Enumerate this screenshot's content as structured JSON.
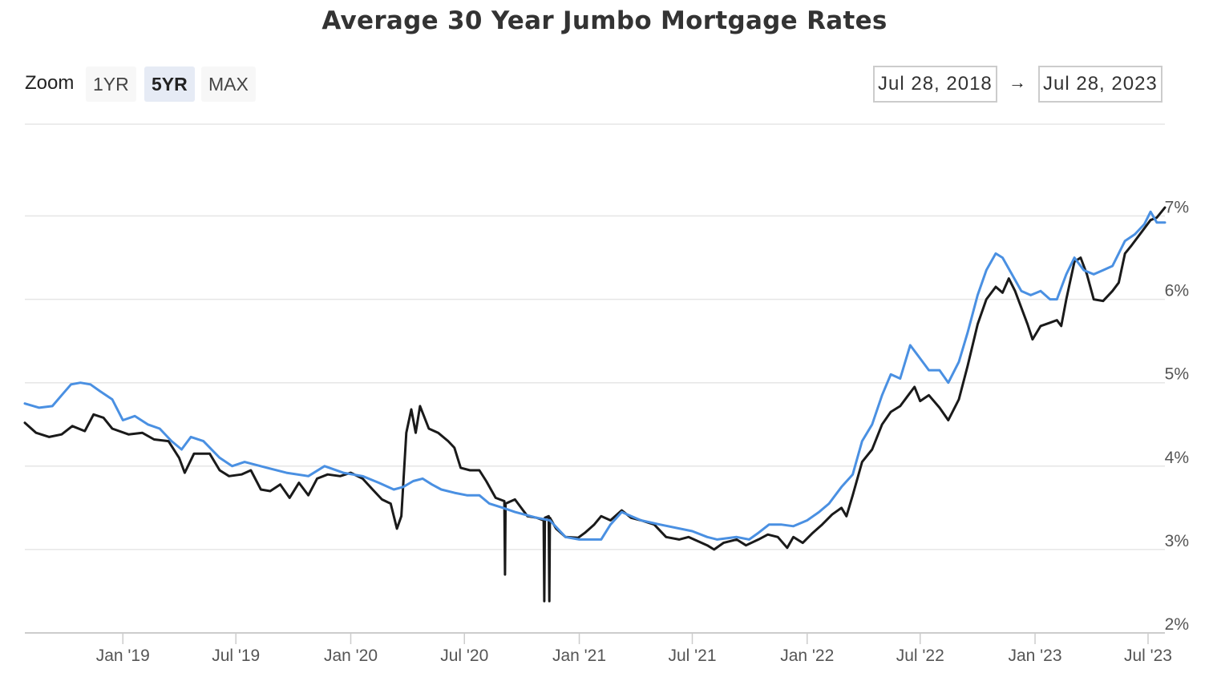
{
  "chart_data": {
    "type": "line",
    "title": "Average 30 Year Jumbo Mortgage Rates",
    "xlabel": "",
    "ylabel": "",
    "x_tick_labels": [
      "Jan '19",
      "Jul '19",
      "Jan '20",
      "Jul '20",
      "Jan '21",
      "Jul '21",
      "Jan '22",
      "Jul '22",
      "Jan '23",
      "Jul '23"
    ],
    "y_tick_labels": [
      "2%",
      "3%",
      "4%",
      "5%",
      "6%",
      "7%"
    ],
    "ylim": [
      2,
      8.1
    ],
    "xlim": [
      "2018-07-28",
      "2023-07-28"
    ],
    "grid": true,
    "legend": "none",
    "series": [
      {
        "color": "#1a1a1a",
        "points": [
          [
            "2018-07-28",
            4.52
          ],
          [
            "2018-08-15",
            4.4
          ],
          [
            "2018-09-05",
            4.35
          ],
          [
            "2018-09-25",
            4.38
          ],
          [
            "2018-10-12",
            4.48
          ],
          [
            "2018-11-01",
            4.42
          ],
          [
            "2018-11-15",
            4.62
          ],
          [
            "2018-12-01",
            4.58
          ],
          [
            "2018-12-15",
            4.45
          ],
          [
            "2019-01-10",
            4.38
          ],
          [
            "2019-02-01",
            4.4
          ],
          [
            "2019-02-20",
            4.32
          ],
          [
            "2019-03-15",
            4.3
          ],
          [
            "2019-04-01",
            4.1
          ],
          [
            "2019-04-10",
            3.92
          ],
          [
            "2019-04-25",
            4.15
          ],
          [
            "2019-05-20",
            4.15
          ],
          [
            "2019-06-05",
            3.95
          ],
          [
            "2019-06-20",
            3.88
          ],
          [
            "2019-07-10",
            3.9
          ],
          [
            "2019-07-25",
            3.95
          ],
          [
            "2019-08-10",
            3.72
          ],
          [
            "2019-08-25",
            3.7
          ],
          [
            "2019-09-10",
            3.78
          ],
          [
            "2019-09-25",
            3.62
          ],
          [
            "2019-10-10",
            3.8
          ],
          [
            "2019-10-25",
            3.65
          ],
          [
            "2019-11-08",
            3.85
          ],
          [
            "2019-11-25",
            3.9
          ],
          [
            "2019-12-15",
            3.88
          ],
          [
            "2020-01-01",
            3.92
          ],
          [
            "2020-01-20",
            3.85
          ],
          [
            "2020-02-05",
            3.72
          ],
          [
            "2020-02-20",
            3.6
          ],
          [
            "2020-03-05",
            3.55
          ],
          [
            "2020-03-15",
            3.25
          ],
          [
            "2020-03-22",
            3.4
          ],
          [
            "2020-03-30",
            4.4
          ],
          [
            "2020-04-07",
            4.68
          ],
          [
            "2020-04-14",
            4.4
          ],
          [
            "2020-04-21",
            4.72
          ],
          [
            "2020-05-05",
            4.45
          ],
          [
            "2020-05-20",
            4.4
          ],
          [
            "2020-06-05",
            4.3
          ],
          [
            "2020-06-15",
            4.22
          ],
          [
            "2020-06-25",
            3.98
          ],
          [
            "2020-07-10",
            3.95
          ],
          [
            "2020-07-25",
            3.95
          ],
          [
            "2020-08-05",
            3.82
          ],
          [
            "2020-08-20",
            3.62
          ],
          [
            "2020-09-03",
            3.58
          ],
          [
            "2020-09-04",
            2.7
          ],
          [
            "2020-09-05",
            3.55
          ],
          [
            "2020-09-20",
            3.6
          ],
          [
            "2020-10-10",
            3.4
          ],
          [
            "2020-10-25",
            3.38
          ],
          [
            "2020-11-05",
            3.35
          ],
          [
            "2020-11-06",
            2.38
          ],
          [
            "2020-11-07",
            3.38
          ],
          [
            "2020-11-13",
            3.4
          ],
          [
            "2020-11-14",
            2.38
          ],
          [
            "2020-11-15",
            3.38
          ],
          [
            "2020-11-25",
            3.25
          ],
          [
            "2020-12-10",
            3.15
          ],
          [
            "2020-12-30",
            3.14
          ],
          [
            "2021-01-10",
            3.2
          ],
          [
            "2021-01-25",
            3.3
          ],
          [
            "2021-02-05",
            3.4
          ],
          [
            "2021-02-20",
            3.35
          ],
          [
            "2021-03-10",
            3.47
          ],
          [
            "2021-03-25",
            3.38
          ],
          [
            "2021-04-10",
            3.35
          ],
          [
            "2021-05-01",
            3.3
          ],
          [
            "2021-05-20",
            3.15
          ],
          [
            "2021-06-10",
            3.12
          ],
          [
            "2021-06-25",
            3.15
          ],
          [
            "2021-07-10",
            3.1
          ],
          [
            "2021-07-25",
            3.05
          ],
          [
            "2021-08-05",
            3.0
          ],
          [
            "2021-08-20",
            3.08
          ],
          [
            "2021-09-10",
            3.12
          ],
          [
            "2021-09-25",
            3.05
          ],
          [
            "2021-10-15",
            3.12
          ],
          [
            "2021-10-30",
            3.18
          ],
          [
            "2021-11-15",
            3.15
          ],
          [
            "2021-11-30",
            3.02
          ],
          [
            "2021-12-10",
            3.15
          ],
          [
            "2021-12-25",
            3.08
          ],
          [
            "2022-01-10",
            3.2
          ],
          [
            "2022-01-25",
            3.3
          ],
          [
            "2022-02-10",
            3.42
          ],
          [
            "2022-02-25",
            3.5
          ],
          [
            "2022-03-05",
            3.4
          ],
          [
            "2022-03-15",
            3.65
          ],
          [
            "2022-03-30",
            4.05
          ],
          [
            "2022-04-15",
            4.2
          ],
          [
            "2022-05-01",
            4.5
          ],
          [
            "2022-05-15",
            4.65
          ],
          [
            "2022-05-30",
            4.72
          ],
          [
            "2022-06-12",
            4.85
          ],
          [
            "2022-06-22",
            4.95
          ],
          [
            "2022-07-01",
            4.78
          ],
          [
            "2022-07-15",
            4.85
          ],
          [
            "2022-08-01",
            4.7
          ],
          [
            "2022-08-15",
            4.55
          ],
          [
            "2022-09-01",
            4.8
          ],
          [
            "2022-09-15",
            5.2
          ],
          [
            "2022-10-01",
            5.7
          ],
          [
            "2022-10-15",
            6.0
          ],
          [
            "2022-10-30",
            6.15
          ],
          [
            "2022-11-10",
            6.08
          ],
          [
            "2022-11-20",
            6.25
          ],
          [
            "2022-11-30",
            6.1
          ],
          [
            "2022-12-10",
            5.9
          ],
          [
            "2022-12-20",
            5.7
          ],
          [
            "2022-12-28",
            5.52
          ],
          [
            "2023-01-10",
            5.68
          ],
          [
            "2023-01-25",
            5.72
          ],
          [
            "2023-02-05",
            5.75
          ],
          [
            "2023-02-12",
            5.68
          ],
          [
            "2023-02-20",
            6.0
          ],
          [
            "2023-03-05",
            6.45
          ],
          [
            "2023-03-15",
            6.5
          ],
          [
            "2023-03-25",
            6.3
          ],
          [
            "2023-04-05",
            6.0
          ],
          [
            "2023-04-20",
            5.98
          ],
          [
            "2023-05-05",
            6.1
          ],
          [
            "2023-05-15",
            6.2
          ],
          [
            "2023-05-25",
            6.55
          ],
          [
            "2023-06-05",
            6.65
          ],
          [
            "2023-06-20",
            6.8
          ],
          [
            "2023-07-05",
            6.95
          ],
          [
            "2023-07-15",
            6.98
          ],
          [
            "2023-07-28",
            7.1
          ]
        ]
      },
      {
        "color": "#4a90e2",
        "points": [
          [
            "2018-07-28",
            4.75
          ],
          [
            "2018-08-20",
            4.7
          ],
          [
            "2018-09-10",
            4.72
          ],
          [
            "2018-09-25",
            4.85
          ],
          [
            "2018-10-10",
            4.98
          ],
          [
            "2018-10-25",
            5.0
          ],
          [
            "2018-11-10",
            4.98
          ],
          [
            "2018-11-25",
            4.9
          ],
          [
            "2018-12-15",
            4.8
          ],
          [
            "2019-01-01",
            4.55
          ],
          [
            "2019-01-20",
            4.6
          ],
          [
            "2019-02-10",
            4.5
          ],
          [
            "2019-03-01",
            4.45
          ],
          [
            "2019-03-20",
            4.3
          ],
          [
            "2019-04-05",
            4.2
          ],
          [
            "2019-04-20",
            4.35
          ],
          [
            "2019-05-10",
            4.3
          ],
          [
            "2019-06-05",
            4.1
          ],
          [
            "2019-06-25",
            4.0
          ],
          [
            "2019-07-15",
            4.05
          ],
          [
            "2019-08-20",
            3.98
          ],
          [
            "2019-09-20",
            3.92
          ],
          [
            "2019-10-25",
            3.88
          ],
          [
            "2019-11-20",
            4.0
          ],
          [
            "2019-12-20",
            3.92
          ],
          [
            "2020-01-20",
            3.88
          ],
          [
            "2020-02-15",
            3.8
          ],
          [
            "2020-03-10",
            3.72
          ],
          [
            "2020-03-25",
            3.75
          ],
          [
            "2020-04-10",
            3.82
          ],
          [
            "2020-04-25",
            3.85
          ],
          [
            "2020-05-10",
            3.78
          ],
          [
            "2020-05-25",
            3.72
          ],
          [
            "2020-06-15",
            3.68
          ],
          [
            "2020-07-05",
            3.65
          ],
          [
            "2020-07-25",
            3.65
          ],
          [
            "2020-08-10",
            3.55
          ],
          [
            "2020-09-01",
            3.5
          ],
          [
            "2020-09-20",
            3.45
          ],
          [
            "2020-10-25",
            3.38
          ],
          [
            "2020-11-15",
            3.35
          ],
          [
            "2020-12-10",
            3.15
          ],
          [
            "2021-01-01",
            3.12
          ],
          [
            "2021-02-05",
            3.12
          ],
          [
            "2021-02-20",
            3.3
          ],
          [
            "2021-03-10",
            3.45
          ],
          [
            "2021-03-25",
            3.4
          ],
          [
            "2021-04-10",
            3.35
          ],
          [
            "2021-05-10",
            3.3
          ],
          [
            "2021-07-01",
            3.22
          ],
          [
            "2021-07-25",
            3.15
          ],
          [
            "2021-08-10",
            3.12
          ],
          [
            "2021-09-10",
            3.15
          ],
          [
            "2021-09-30",
            3.12
          ],
          [
            "2021-10-15",
            3.2
          ],
          [
            "2021-11-01",
            3.3
          ],
          [
            "2021-11-20",
            3.3
          ],
          [
            "2021-12-10",
            3.28
          ],
          [
            "2022-01-01",
            3.35
          ],
          [
            "2022-01-20",
            3.45
          ],
          [
            "2022-02-05",
            3.55
          ],
          [
            "2022-02-25",
            3.75
          ],
          [
            "2022-03-15",
            3.9
          ],
          [
            "2022-03-30",
            4.3
          ],
          [
            "2022-04-15",
            4.5
          ],
          [
            "2022-05-01",
            4.85
          ],
          [
            "2022-05-15",
            5.1
          ],
          [
            "2022-05-30",
            5.05
          ],
          [
            "2022-06-15",
            5.45
          ],
          [
            "2022-06-30",
            5.3
          ],
          [
            "2022-07-15",
            5.15
          ],
          [
            "2022-08-01",
            5.15
          ],
          [
            "2022-08-15",
            5.0
          ],
          [
            "2022-09-01",
            5.25
          ],
          [
            "2022-09-15",
            5.6
          ],
          [
            "2022-10-01",
            6.05
          ],
          [
            "2022-10-15",
            6.35
          ],
          [
            "2022-10-30",
            6.55
          ],
          [
            "2022-11-10",
            6.5
          ],
          [
            "2022-11-25",
            6.3
          ],
          [
            "2022-12-10",
            6.1
          ],
          [
            "2022-12-25",
            6.05
          ],
          [
            "2023-01-10",
            6.1
          ],
          [
            "2023-01-25",
            6.0
          ],
          [
            "2023-02-05",
            6.0
          ],
          [
            "2023-02-20",
            6.3
          ],
          [
            "2023-03-05",
            6.5
          ],
          [
            "2023-03-20",
            6.35
          ],
          [
            "2023-04-05",
            6.3
          ],
          [
            "2023-04-20",
            6.35
          ],
          [
            "2023-05-05",
            6.4
          ],
          [
            "2023-05-25",
            6.7
          ],
          [
            "2023-06-10",
            6.78
          ],
          [
            "2023-06-25",
            6.9
          ],
          [
            "2023-07-05",
            7.05
          ],
          [
            "2023-07-15",
            6.92
          ],
          [
            "2023-07-28",
            6.92
          ]
        ]
      }
    ]
  },
  "controls": {
    "zoom_label": "Zoom",
    "zoom_buttons": [
      {
        "label": "1YR",
        "active": false
      },
      {
        "label": "5YR",
        "active": true
      },
      {
        "label": "MAX",
        "active": false
      }
    ],
    "range_from": "Jul 28, 2018",
    "range_arrow": "→",
    "range_to": "Jul 28, 2023"
  },
  "colors": {
    "grid": "#e6e6e6",
    "axis": "#cccccc"
  }
}
